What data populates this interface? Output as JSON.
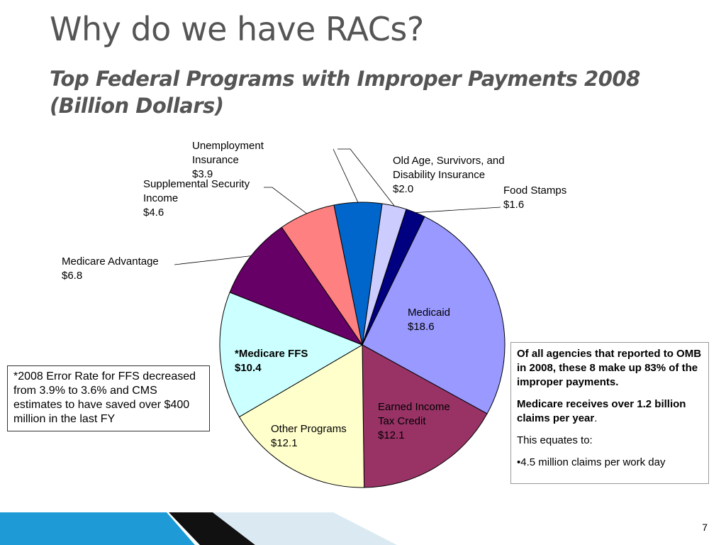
{
  "slide": {
    "title": "Why do we have RACs?",
    "subtitle": "Top Federal Programs with Improper Payments 2008 (Billion Dollars)",
    "page_number": "7"
  },
  "footnote": {
    "text": "*2008 Error Rate for FFS decreased from 3.9% to 3.6% and CMS estimates to have saved over $400 million in the last FY"
  },
  "info_box": {
    "line1": "Of all agencies that reported to OMB in 2008, these 8 make up 83% of the improper payments.",
    "line2_bold": "Medicare receives over 1.2 billion claims per year",
    "line2_tail": ".",
    "line3": "This equates to:",
    "line4": "•4.5 million claims per work day"
  },
  "chart_data": {
    "type": "pie",
    "title": "Top Federal Programs with Improper Payments 2008 (Billion Dollars)",
    "unit": "Billion Dollars",
    "slices": [
      {
        "name": "Old Age, Survivors, and Disability Insurance",
        "value": 2.0,
        "label_value": "$2.0",
        "color": "#CCCCFF"
      },
      {
        "name": "Food Stamps",
        "value": 1.6,
        "label_value": "$1.6",
        "color": "#000080"
      },
      {
        "name": "Medicaid",
        "value": 18.6,
        "label_value": "$18.6",
        "color": "#9999FF"
      },
      {
        "name": "Earned Income Tax Credit",
        "value": 12.1,
        "label_value": "$12.1",
        "color": "#993366"
      },
      {
        "name": "Other Programs",
        "value": 12.1,
        "label_value": "$12.1",
        "color": "#FFFFCC"
      },
      {
        "name": "*Medicare FFS",
        "value": 10.4,
        "label_value": "$10.4",
        "color": "#CCFFFF",
        "bold": true
      },
      {
        "name": "Medicare Advantage",
        "value": 6.8,
        "label_value": "$6.8",
        "color": "#660066"
      },
      {
        "name": "Supplemental Security Income",
        "value": 4.6,
        "label_value": "$4.6",
        "color": "#FF8080"
      },
      {
        "name": "Unemployment Insurance",
        "value": 3.9,
        "label_value": "$3.9",
        "color": "#0066CC"
      }
    ]
  },
  "colors": {
    "title_text": "#555555",
    "bar_dark": "#111111",
    "bar_light_blue": "#1e9ad6",
    "bar_pale": "#dbeaf2"
  }
}
